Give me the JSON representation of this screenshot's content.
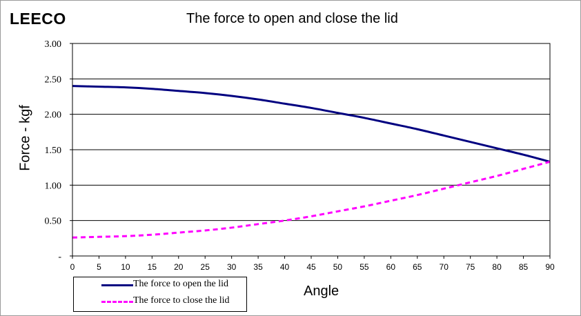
{
  "brand": "LEECO",
  "chart_data": {
    "type": "line",
    "title": "The force to open and close the lid",
    "xlabel": "Angle",
    "ylabel": "Force - kgf",
    "xlim": [
      0,
      90
    ],
    "ylim": [
      0,
      3.0
    ],
    "x_ticks": [
      0,
      5,
      10,
      15,
      20,
      25,
      30,
      35,
      40,
      45,
      50,
      55,
      60,
      65,
      70,
      75,
      80,
      85,
      90
    ],
    "y_tick_labels": [
      "-",
      "0.50",
      "1.00",
      "1.50",
      "2.00",
      "2.50",
      "3.00"
    ],
    "y_tick_values": [
      0,
      0.5,
      1.0,
      1.5,
      2.0,
      2.5,
      3.0
    ],
    "grid": "horizontal",
    "legend_position": "bottom-left",
    "x": [
      0,
      5,
      10,
      15,
      20,
      25,
      30,
      35,
      40,
      45,
      50,
      55,
      60,
      65,
      70,
      75,
      80,
      85,
      90
    ],
    "series": [
      {
        "name": "The force to open the lid",
        "color": "#000080",
        "style": "solid",
        "values": [
          2.4,
          2.39,
          2.38,
          2.36,
          2.33,
          2.3,
          2.26,
          2.21,
          2.15,
          2.09,
          2.02,
          1.95,
          1.87,
          1.79,
          1.7,
          1.61,
          1.52,
          1.43,
          1.33
        ]
      },
      {
        "name": "The force to close the lid",
        "color": "#ff00ff",
        "style": "dashed",
        "values": [
          0.26,
          0.27,
          0.28,
          0.3,
          0.33,
          0.36,
          0.4,
          0.45,
          0.5,
          0.56,
          0.63,
          0.7,
          0.78,
          0.86,
          0.95,
          1.04,
          1.13,
          1.23,
          1.33
        ]
      }
    ]
  }
}
